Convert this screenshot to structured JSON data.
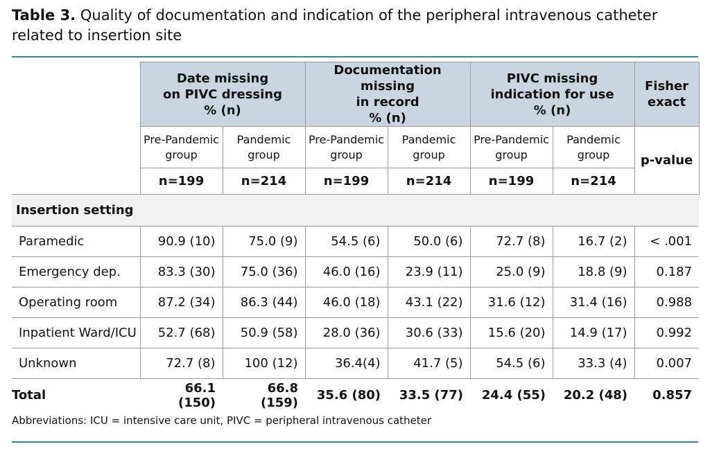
{
  "title": {
    "label": "Table 3.",
    "text": "Quality of documentation and indication of the peripheral intravenous catheter related to insertion site"
  },
  "header": {
    "groups": [
      "Date missing\non PIVC dressing\n% (n)",
      "Documentation missing\nin record\n% (n)",
      "PIVC missing\nindication for use\n% (n)",
      "Fisher\nexact"
    ],
    "subgroups": [
      "Pre-Pandemic\ngroup",
      "Pandemic\ngroup",
      "Pre-Pandemic\ngroup",
      "Pandemic\ngroup",
      "Pre-Pandemic\ngroup",
      "Pandemic\ngroup"
    ],
    "n": [
      "n=199",
      "n=214",
      "n=199",
      "n=214",
      "n=199",
      "n=214"
    ],
    "pvalue": "p-value"
  },
  "section": "Insertion setting",
  "rows": [
    [
      "Paramedic",
      "90.9 (10)",
      "75.0 (9)",
      "54.5 (6)",
      "50.0 (6)",
      "72.7 (8)",
      "16.7 (2)",
      "< .001"
    ],
    [
      "Emergency dep.",
      "83.3 (30)",
      "75.0 (36)",
      "46.0 (16)",
      "23.9 (11)",
      "25.0 (9)",
      "18.8 (9)",
      "0.187"
    ],
    [
      "Operating room",
      "87.2 (34)",
      "86.3 (44)",
      "46.0 (18)",
      "43.1 (22)",
      "31.6 (12)",
      "31.4 (16)",
      "0.988"
    ],
    [
      "Inpatient Ward/ICU",
      "52.7 (68)",
      "50.9 (58)",
      "28.0 (36)",
      "30.6 (33)",
      "15.6 (20)",
      "14.9 (17)",
      "0.992"
    ],
    [
      "Unknown",
      "72.7 (8)",
      "100 (12)",
      "36.4(4)",
      "41.7 (5)",
      "54.5 (6)",
      "33.3 (4)",
      "0.007"
    ]
  ],
  "total": [
    "Total",
    "66.1 (150)",
    "66.8 (159)",
    "35.6 (80)",
    "33.5 (77)",
    "24.4 (55)",
    "20.2 (48)",
    "0.857"
  ],
  "footnote": "Abbreviations: ICU = intensive care unit, PIVC = peripheral intravenous catheter"
}
